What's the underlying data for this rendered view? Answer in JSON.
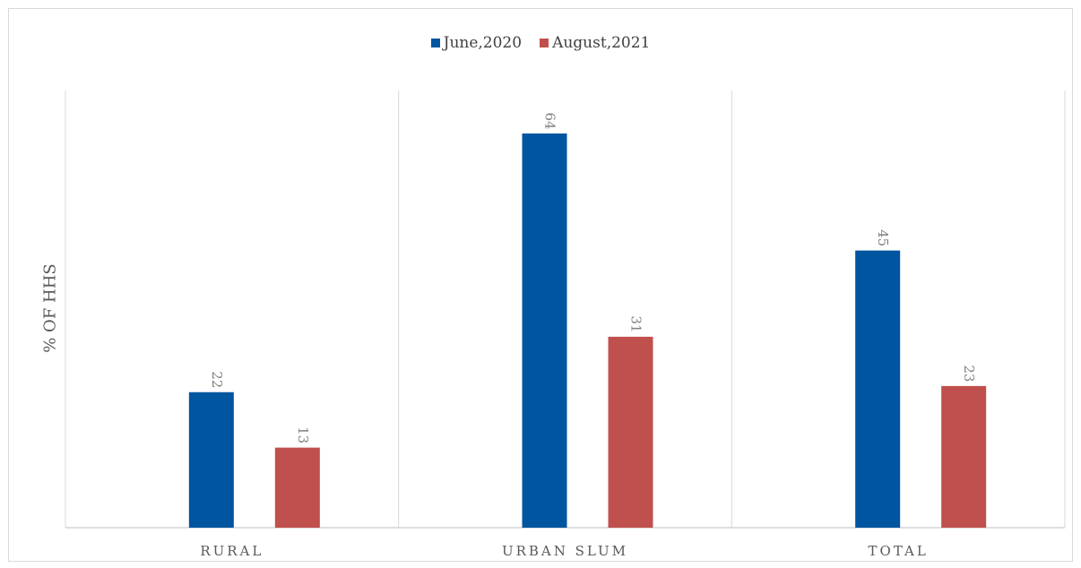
{
  "chart_data": {
    "type": "bar",
    "categories": [
      "RURAL",
      "URBAN SLUM",
      "TOTAL"
    ],
    "series": [
      {
        "name": "June,2020",
        "values": [
          22,
          64,
          45
        ],
        "color": "#0055a0"
      },
      {
        "name": "August,2021",
        "values": [
          13,
          31,
          23
        ],
        "color": "#c0504d"
      }
    ],
    "ylabel": "% OF HHS",
    "ylim": [
      0,
      70
    ],
    "legend_position": "top",
    "grid": "vertical category separators"
  }
}
